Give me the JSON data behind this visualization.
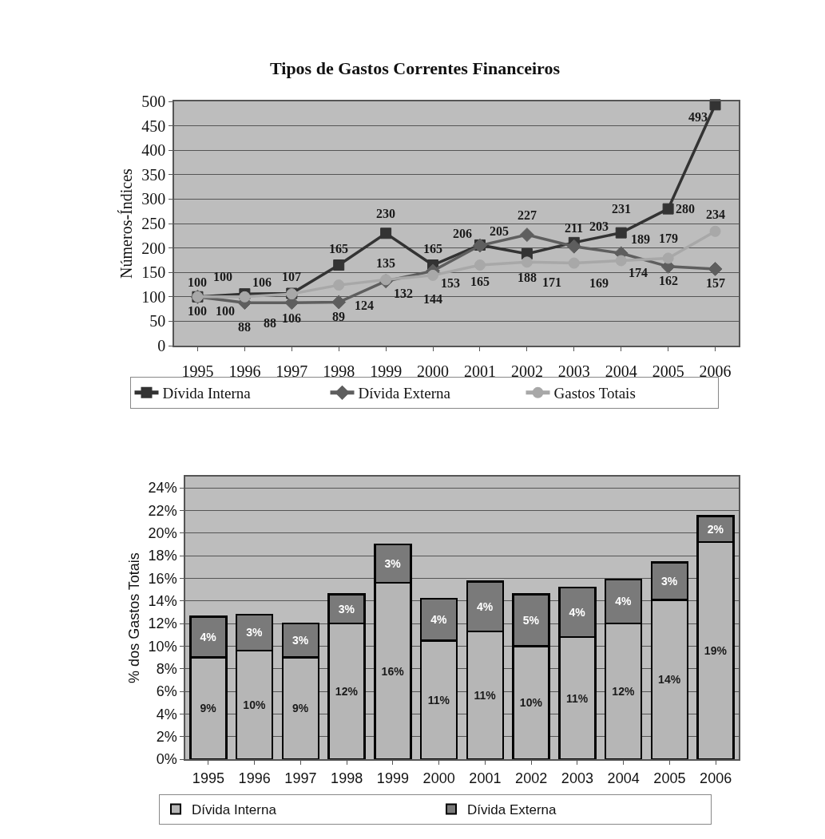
{
  "chart_data": [
    {
      "type": "line",
      "title": "Tipos de Gastos Correntes Financeiros",
      "ylabel": "Números-Índices",
      "categories": [
        "1995",
        "1996",
        "1997",
        "1998",
        "1999",
        "2000",
        "2001",
        "2002",
        "2003",
        "2004",
        "2005",
        "2006"
      ],
      "series": [
        {
          "name": "Dívida Interna",
          "color": "#333333",
          "marker": "square",
          "values": [
            100,
            106,
            107,
            165,
            230,
            165,
            206,
            188,
            211,
            231,
            280,
            493
          ]
        },
        {
          "name": "Dívida Externa",
          "color": "#5e5e5e",
          "marker": "diamond",
          "values": [
            100,
            88,
            88,
            89,
            132,
            153,
            205,
            227,
            203,
            189,
            162,
            157
          ]
        },
        {
          "name": "Gastos Totais",
          "color": "#a8a8a8",
          "marker": "circle",
          "values": [
            100,
            100,
            106,
            124,
            135,
            144,
            165,
            171,
            169,
            174,
            179,
            234
          ]
        }
      ],
      "ylim": [
        0,
        500
      ],
      "yticks": [
        0,
        50,
        100,
        150,
        200,
        250,
        300,
        350,
        400,
        450,
        500
      ],
      "grid": "y",
      "legend": "bottom",
      "data_labels": true,
      "line_style": "solid"
    },
    {
      "type": "bar",
      "stacked": true,
      "ylabel": "% dos Gastos Totais",
      "categories": [
        "1995",
        "1996",
        "1997",
        "1998",
        "1999",
        "2000",
        "2001",
        "2002",
        "2003",
        "2004",
        "2005",
        "2006"
      ],
      "series": [
        {
          "name": "Dívida Interna",
          "color": "#b6b6b6",
          "values": [
            9.0,
            9.6,
            9.0,
            12.0,
            15.6,
            10.5,
            11.3,
            10.0,
            10.8,
            12.0,
            14.1,
            19.2
          ],
          "value_labels": [
            "9%",
            "10%",
            "9%",
            "12%",
            "16%",
            "11%",
            "11%",
            "10%",
            "11%",
            "12%",
            "14%",
            "19%"
          ]
        },
        {
          "name": "Dívida Externa",
          "color": "#7a7a7a",
          "values": [
            3.6,
            3.2,
            3.0,
            2.6,
            3.4,
            3.7,
            4.4,
            4.6,
            4.4,
            3.9,
            3.3,
            2.3
          ],
          "value_labels": [
            "4%",
            "3%",
            "3%",
            "3%",
            "3%",
            "4%",
            "4%",
            "5%",
            "4%",
            "4%",
            "3%",
            "2%"
          ]
        }
      ],
      "ylim": [
        0,
        25
      ],
      "yticks": [
        {
          "value": 0,
          "label": "0%"
        },
        {
          "value": 2,
          "label": "2%"
        },
        {
          "value": 4,
          "label": "4%"
        },
        {
          "value": 6,
          "label": "6%"
        },
        {
          "value": 8,
          "label": "8%"
        },
        {
          "value": 10,
          "label": "10%"
        },
        {
          "value": 12,
          "label": "12%"
        },
        {
          "value": 14,
          "label": "14%"
        },
        {
          "value": 16,
          "label": "16%"
        },
        {
          "value": 18,
          "label": "18%"
        },
        {
          "value": 20,
          "label": "20%"
        },
        {
          "value": 22,
          "label": "22%"
        },
        {
          "value": 24,
          "label": "24%"
        }
      ],
      "grid": "y",
      "legend": "bottom"
    }
  ]
}
